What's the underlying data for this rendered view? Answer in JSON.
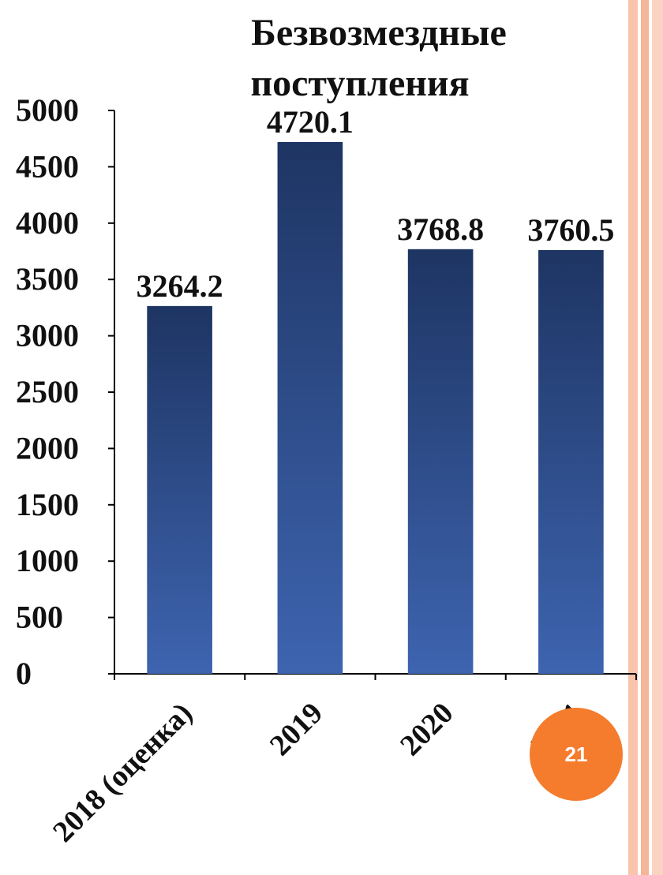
{
  "slide": {
    "page_number": "21",
    "accent_color": "#f57c2c",
    "stripe_color": "#f7b69b"
  },
  "chart_data": {
    "type": "bar",
    "title": "Безвозмездные поступления",
    "title_lines": [
      "Безвозмездные",
      "поступления"
    ],
    "categories": [
      "2018 (оценка)",
      "2019",
      "2020",
      "2021"
    ],
    "values": [
      3264.2,
      4720.1,
      3768.8,
      3760.5
    ],
    "value_labels": [
      "3264.2",
      "4720.1",
      "3768.8",
      "3760.5"
    ],
    "ylim": [
      0,
      5000
    ],
    "yticks": [
      0,
      500,
      1000,
      1500,
      2000,
      2500,
      3000,
      3500,
      4000,
      4500,
      5000
    ],
    "ytick_labels": [
      "0",
      "500",
      "1000",
      "1500",
      "2000",
      "2500",
      "3000",
      "3500",
      "4000",
      "4500",
      "5000"
    ],
    "xlabel": "",
    "ylabel": "",
    "grid": false,
    "legend": "none",
    "bar_color_top": "#1e3563",
    "bar_color_bottom": "#3e64b0"
  }
}
